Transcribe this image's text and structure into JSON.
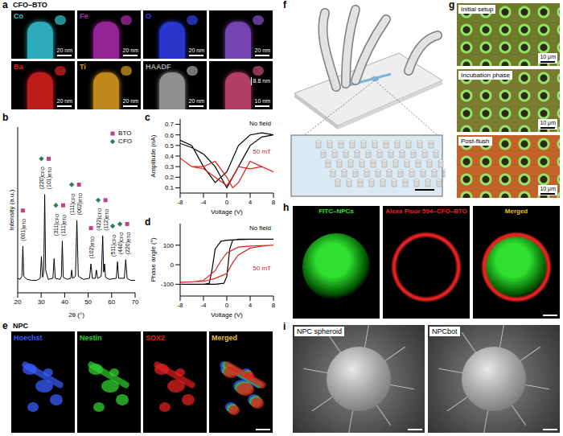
{
  "chart_data": [
    {
      "panel": "b",
      "type": "line",
      "xlabel": "2θ (°)",
      "ylabel": "Intensity (a.u.)",
      "x": [
        20,
        21,
        21.8,
        22.2,
        22.6,
        24,
        26,
        28,
        29.6,
        30.1,
        30.6,
        31.1,
        31.5,
        31.9,
        33,
        35,
        35.5,
        36,
        38,
        38.6,
        39,
        39.4,
        41,
        42.6,
        43,
        43.4,
        44.6,
        45.2,
        45.8,
        48,
        50.6,
        51.2,
        51.8,
        53,
        53.5,
        54,
        55.6,
        56.2,
        56.6,
        57,
        57.4,
        59,
        62,
        62.5,
        63,
        65.4,
        66,
        66.6,
        68,
        70
      ],
      "values": [
        14,
        13,
        16,
        45,
        16,
        13,
        12,
        12,
        14,
        35,
        15,
        20,
        95,
        22,
        13,
        14,
        33,
        14,
        13,
        16,
        50,
        15,
        13,
        14,
        22,
        14,
        16,
        70,
        16,
        13,
        14,
        28,
        14,
        14,
        22,
        14,
        16,
        55,
        20,
        28,
        15,
        13,
        14,
        30,
        14,
        14,
        32,
        14,
        12,
        12
      ],
      "color": "#000000",
      "xlim": [
        20,
        70
      ],
      "xticks": [
        20,
        30,
        40,
        50,
        60,
        70
      ],
      "ylim": [
        0,
        160
      ],
      "yticks": [],
      "tick_labels": "x",
      "legend": "top right",
      "phases": [
        {
          "name": "BTO",
          "color": "#c2408a",
          "marker": "square"
        },
        {
          "name": "CFO",
          "color": "#2f7f5f",
          "marker": "diamond"
        }
      ],
      "annotations": [
        {
          "x": 22.2,
          "label": "(001)",
          "phase": "BTO"
        },
        {
          "x": 30.1,
          "label": "(220)",
          "phase": "CFO"
        },
        {
          "x": 31.5,
          "label": "(101)",
          "phase": "BTO"
        },
        {
          "x": 35.5,
          "label": "(311)",
          "phase": "CFO"
        },
        {
          "x": 39,
          "label": "(111)",
          "phase": "BTO"
        },
        {
          "x": 43,
          "label": "(111)",
          "phase": "CFO"
        },
        {
          "x": 45.2,
          "label": "(002)",
          "phase": "BTO"
        },
        {
          "x": 51.2,
          "label": "(102)",
          "phase": "BTO"
        },
        {
          "x": 53.5,
          "label": "(422)",
          "phase": "CFO"
        },
        {
          "x": 56.2,
          "label": "(112)",
          "phase": "BTO"
        },
        {
          "x": 57,
          "label": "(511)",
          "phase": "CFO"
        },
        {
          "x": 62.5,
          "label": "(440)",
          "phase": "CFO"
        },
        {
          "x": 66,
          "label": "(220)",
          "phase": "BTO"
        }
      ]
    },
    {
      "panel": "c",
      "type": "line",
      "xlabel": "Voltage (V)",
      "ylabel": "Amplitude (nA)",
      "xlim": [
        -8,
        8
      ],
      "xticks": [
        -8,
        -4,
        0,
        4,
        8
      ],
      "ylim": [
        0.05,
        0.75
      ],
      "yticks": [
        0.1,
        0.2,
        0.3,
        0.4,
        0.5,
        0.6,
        0.7
      ],
      "series": [
        {
          "name": "No field",
          "color": "#000000",
          "x": [
            -8,
            -6,
            -4,
            -2,
            0,
            2,
            4,
            6,
            8,
            8,
            6,
            4,
            2,
            0,
            -1,
            -2,
            -4,
            -6,
            -8
          ],
          "values": [
            0.55,
            0.5,
            0.3,
            0.15,
            0.25,
            0.5,
            0.6,
            0.62,
            0.6,
            0.6,
            0.58,
            0.5,
            0.3,
            0.1,
            0.2,
            0.3,
            0.42,
            0.48,
            0.52
          ]
        },
        {
          "name": "50 mT",
          "color": "#e0201b",
          "x": [
            -8,
            -6,
            -4,
            -2,
            0,
            1,
            2,
            4,
            6,
            8,
            8,
            6,
            4,
            2,
            1,
            0,
            -2,
            -4,
            -6,
            -8
          ],
          "values": [
            0.38,
            0.3,
            0.28,
            0.2,
            0.12,
            0.2,
            0.3,
            0.28,
            0.3,
            0.25,
            0.25,
            0.3,
            0.35,
            0.15,
            0.1,
            0.2,
            0.35,
            0.3,
            0.3,
            0.38
          ]
        }
      ]
    },
    {
      "panel": "d",
      "type": "line",
      "xlabel": "Voltage (V)",
      "ylabel": "Phase angle (°)",
      "xlim": [
        -8,
        8
      ],
      "xticks": [
        -8,
        -4,
        0,
        4,
        8
      ],
      "ylim": [
        -160,
        210
      ],
      "yticks": [
        -100,
        0,
        100
      ],
      "series": [
        {
          "name": "No field",
          "color": "#000000",
          "x": [
            -8,
            -4,
            -2,
            -0.5,
            0,
            0.5,
            1,
            2,
            4,
            8,
            8,
            4,
            2,
            0,
            -1,
            -2,
            -2.5,
            -3,
            -4,
            -8
          ],
          "values": [
            -100,
            -100,
            -100,
            -95,
            -60,
            80,
            125,
            130,
            130,
            130,
            130,
            130,
            128,
            125,
            120,
            80,
            -20,
            -95,
            -100,
            -100
          ]
        },
        {
          "name": "50 mT",
          "color": "#e0201b",
          "x": [
            -8,
            -4,
            -2,
            0,
            1,
            2,
            4,
            6,
            8,
            8,
            6,
            4,
            2,
            0,
            -1,
            -2,
            -4,
            -6,
            -8
          ],
          "values": [
            -90,
            -85,
            -70,
            -45,
            10,
            50,
            85,
            95,
            100,
            100,
            98,
            95,
            90,
            60,
            20,
            -30,
            -80,
            -88,
            -90
          ]
        }
      ]
    }
  ],
  "figure": {
    "a": {
      "letter": "a",
      "title": "CFO–BTO",
      "tiles": [
        {
          "label": "Co",
          "color": "#35c8d8",
          "scale_bar": "20 nm"
        },
        {
          "label": "Fe",
          "color": "#b02cb0",
          "scale_bar": "20 nm"
        },
        {
          "label": "O",
          "color": "#3040f0",
          "scale_bar": "20 nm"
        },
        {
          "color": "#8a50d0",
          "scale_bar": "20 nm"
        },
        {
          "label": "Ba",
          "color": "#e02020",
          "scale_bar": "20 nm"
        },
        {
          "label": "Ti",
          "color": "#e0a020",
          "scale_bar": "20 nm"
        },
        {
          "label": "HAADF",
          "color": "#a8a8a8",
          "scale_bar": "20 nm"
        },
        {
          "color": "#d04878",
          "scale_bar": "10 nm",
          "annotation": "8.8 nm"
        }
      ]
    },
    "e": {
      "letter": "e",
      "title": "NPC",
      "tiles": [
        {
          "label": "Hoechst",
          "color": "#3a5cff"
        },
        {
          "label": "Nestin",
          "color": "#30d030"
        },
        {
          "label": "SOX2",
          "color": "#e02020"
        },
        {
          "label": "Merged",
          "color": "#e8c040"
        }
      ]
    },
    "f": {
      "letter": "f"
    },
    "g": {
      "letter": "g",
      "tiles": [
        {
          "label": "Initial setup",
          "color": "#6f7a2c",
          "scale_bar": "10 μm"
        },
        {
          "label": "Incubation phase",
          "color": "#7a7a30",
          "scale_bar": "10 μm"
        },
        {
          "label": "Post-flush",
          "color": "#c0622a",
          "scale_bar": "10 μm"
        }
      ]
    },
    "h": {
      "letter": "h",
      "tiles": [
        {
          "label": "FITC–NPCs",
          "color": "#30e030"
        },
        {
          "label": "Alexa Fluor 594–CFO–BTO",
          "color": "#e82020"
        },
        {
          "label": "Merged",
          "color": "#e8c020"
        }
      ]
    },
    "i": {
      "letter": "i",
      "tiles": [
        {
          "label": "NPC spheroid"
        },
        {
          "label": "NPCbot"
        }
      ]
    }
  }
}
